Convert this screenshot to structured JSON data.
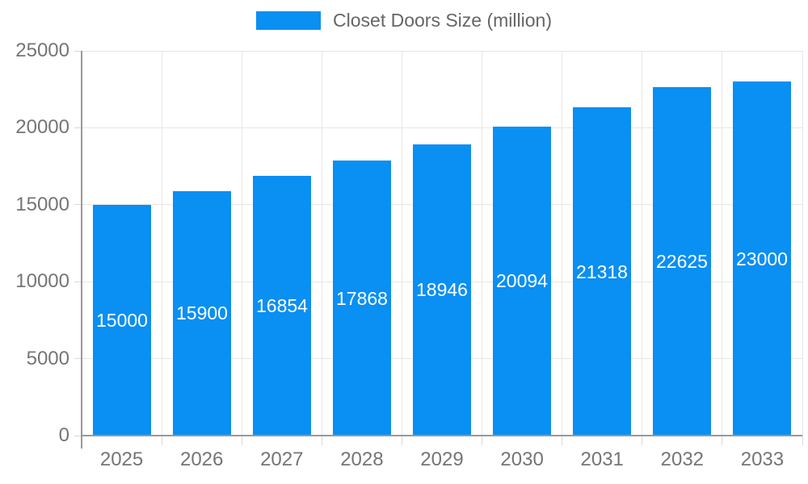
{
  "chart_data": {
    "type": "bar",
    "title": "Closet Doors Size (million)",
    "legend": {
      "position": "top",
      "entries": [
        "Closet Doors Size (million)"
      ]
    },
    "categories": [
      "2025",
      "2026",
      "2027",
      "2028",
      "2029",
      "2030",
      "2031",
      "2032",
      "2033"
    ],
    "series": [
      {
        "name": "Closet Doors Size (million)",
        "values": [
          15000,
          15900,
          16854,
          17868,
          18946,
          20094,
          21318,
          22625,
          23000
        ]
      }
    ],
    "xlabel": "",
    "ylabel": "",
    "ylim": [
      0,
      25000
    ],
    "yticks": [
      0,
      5000,
      10000,
      15000,
      20000,
      25000
    ],
    "grid": true,
    "data_labels": "inside-center",
    "colors": {
      "bar": "#0a8ff2",
      "bar_label_text": "#ffffff",
      "axis_line": "#999999",
      "gridline": "#e6e6e6",
      "tick_mark": "#d9d9d9",
      "axis_text": "#757575",
      "legend_text": "#666666",
      "background": "#ffffff"
    }
  }
}
